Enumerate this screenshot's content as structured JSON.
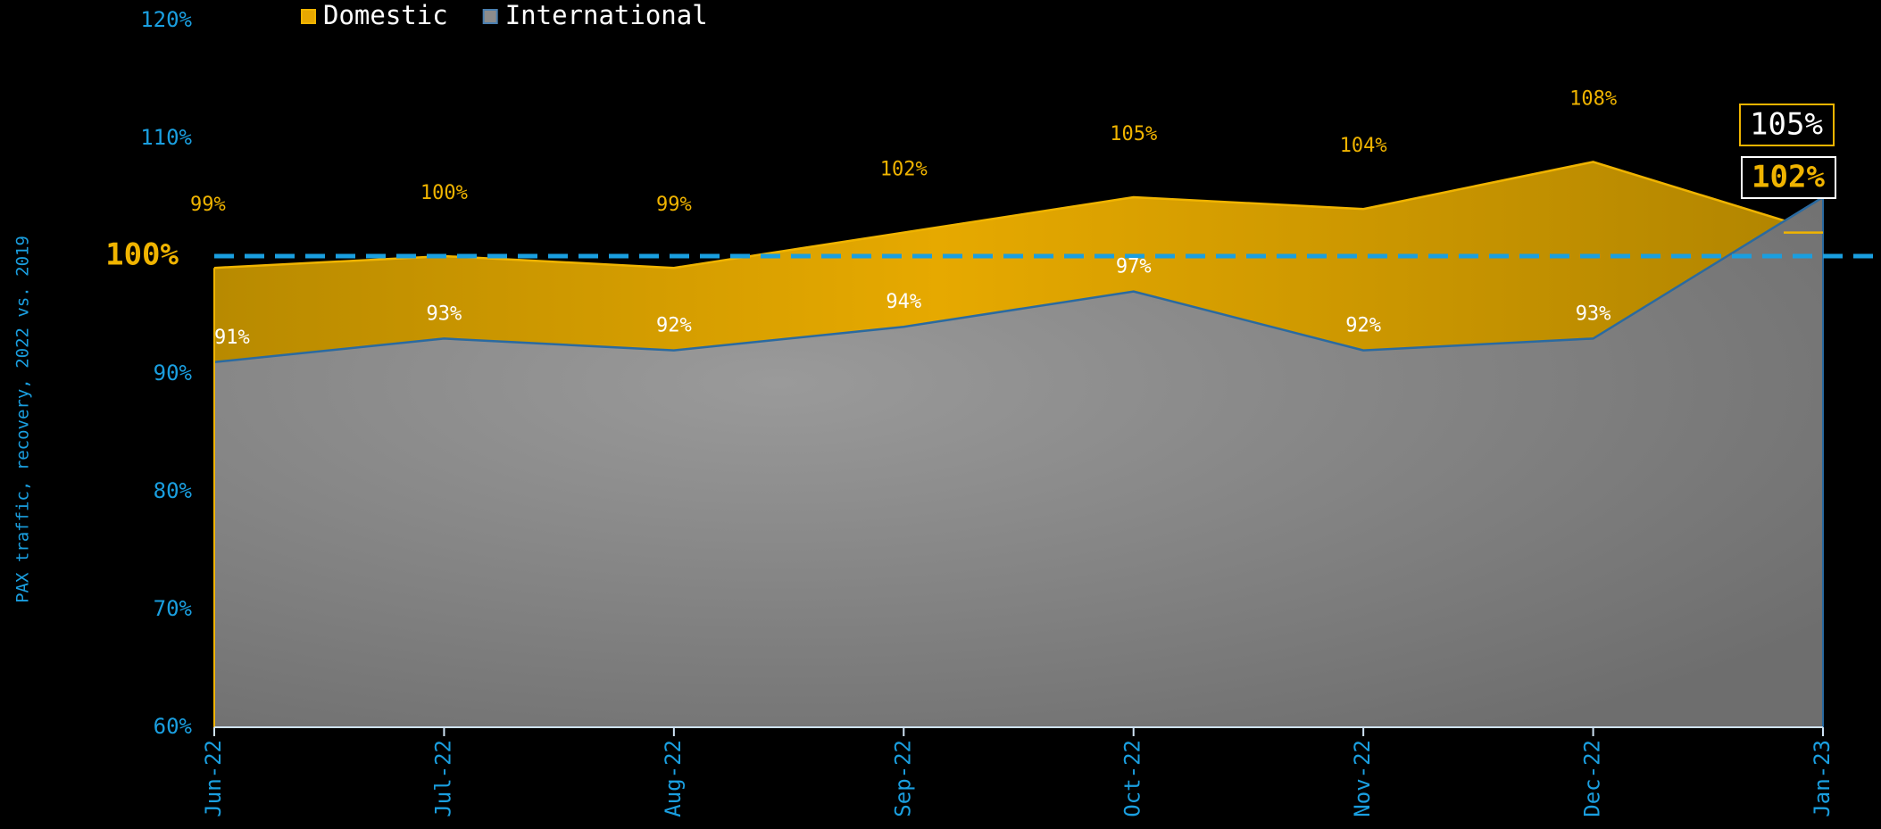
{
  "chart_data": {
    "type": "area",
    "y_axis_label": "PAX traffic, recovery, 2022 vs. 2019",
    "categories": [
      "Jun-22",
      "Jul-22",
      "Aug-22",
      "Sep-22",
      "Oct-22",
      "Nov-22",
      "Dec-22",
      "Jan-23"
    ],
    "series": [
      {
        "name": "Domestic",
        "color": "#e8a800",
        "values": [
          99,
          100,
          99,
          102,
          105,
          104,
          108,
          102
        ],
        "value_labels": [
          "99%",
          "100%",
          "99%",
          "102%",
          "105%",
          "104%",
          "108%",
          "102%"
        ]
      },
      {
        "name": "International",
        "color": "#8c8c8c",
        "values": [
          91,
          93,
          92,
          94,
          97,
          92,
          93,
          105
        ],
        "value_labels": [
          "91%",
          "93%",
          "92%",
          "94%",
          "97%",
          "92%",
          "93%",
          "105%"
        ]
      }
    ],
    "ylim": [
      60,
      120
    ],
    "yticks": [
      {
        "value": 60,
        "label": "60%"
      },
      {
        "value": 70,
        "label": "70%"
      },
      {
        "value": 80,
        "label": "80%"
      },
      {
        "value": 90,
        "label": "90%"
      },
      {
        "value": 100,
        "label": "100%"
      },
      {
        "value": 110,
        "label": "110%"
      },
      {
        "value": 120,
        "label": "120%"
      }
    ],
    "reference_line": {
      "value": 100,
      "color": "#1a9fe0"
    },
    "legend": "top-left"
  }
}
